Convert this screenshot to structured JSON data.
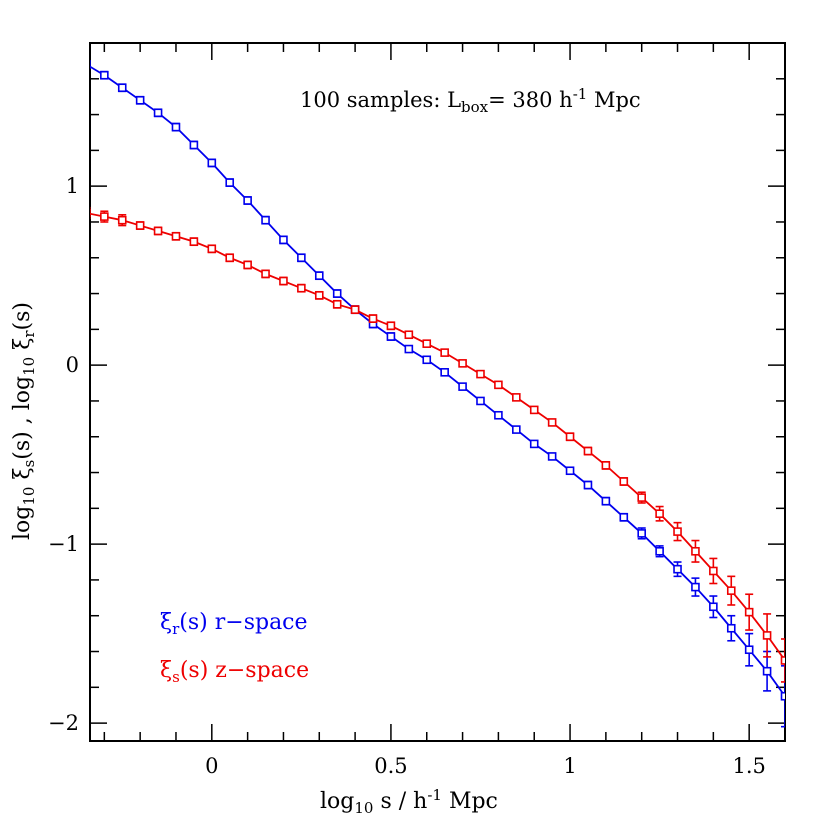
{
  "chart_data": {
    "type": "line",
    "title": "",
    "annotation": {
      "prefix": "100 samples: L",
      "sub": "box",
      "suffix": "=   380 h",
      "sup": "-1",
      "tail": " Mpc"
    },
    "xlabel": {
      "a": "log",
      "a_sub": "10",
      "b": " s / h",
      "b_sup": "-1",
      "c": " Mpc"
    },
    "ylabel": {
      "a": "log",
      "a_sub": "10",
      "b": " ξ",
      "b_sub": "s",
      "c": "(s)  ,  log",
      "c_sub": "10",
      "d": " ξ",
      "d_sub": "r",
      "e": "(s)"
    },
    "xlim": [
      -0.34,
      1.6
    ],
    "ylim": [
      -2.1,
      1.8
    ],
    "x_ticks": [
      {
        "value": 0,
        "label": "0"
      },
      {
        "value": 0.5,
        "label": "0.5"
      },
      {
        "value": 1,
        "label": "1"
      },
      {
        "value": 1.5,
        "label": "1.5"
      }
    ],
    "y_ticks": [
      {
        "value": -2,
        "label": "−2"
      },
      {
        "value": -1,
        "label": "−1"
      },
      {
        "value": 0,
        "label": "0"
      },
      {
        "value": 1,
        "label": "1"
      }
    ],
    "grid": false,
    "legend_position": "bottom-left",
    "x": [
      -0.35,
      -0.3,
      -0.25,
      -0.2,
      -0.15,
      -0.1,
      -0.05,
      0.0,
      0.05,
      0.1,
      0.15,
      0.2,
      0.25,
      0.3,
      0.35,
      0.4,
      0.45,
      0.5,
      0.55,
      0.6,
      0.65,
      0.7,
      0.75,
      0.8,
      0.85,
      0.9,
      0.95,
      1.0,
      1.05,
      1.1,
      1.15,
      1.2,
      1.25,
      1.3,
      1.35,
      1.4,
      1.45,
      1.5,
      1.55,
      1.6
    ],
    "series": [
      {
        "name": "r-space",
        "legend_sym": "ξ",
        "legend_sub": "r",
        "legend_rest": "(s) r−space",
        "color": "#0000ee",
        "values": [
          1.68,
          1.62,
          1.55,
          1.48,
          1.41,
          1.33,
          1.23,
          1.13,
          1.02,
          0.92,
          0.81,
          0.7,
          0.6,
          0.5,
          0.4,
          0.31,
          0.23,
          0.16,
          0.09,
          0.03,
          -0.04,
          -0.12,
          -0.2,
          -0.28,
          -0.36,
          -0.44,
          -0.51,
          -0.59,
          -0.67,
          -0.76,
          -0.85,
          -0.94,
          -1.04,
          -1.14,
          -1.24,
          -1.35,
          -1.47,
          -1.59,
          -1.71,
          -1.85
        ],
        "errors": [
          0.02,
          0.02,
          0.02,
          0.02,
          0.02,
          0.02,
          0.02,
          0.02,
          0.02,
          0.02,
          0.02,
          0.02,
          0.02,
          0.02,
          0.02,
          0.02,
          0.02,
          0.02,
          0.01,
          0.01,
          0.01,
          0.01,
          0.01,
          0.01,
          0.01,
          0.01,
          0.01,
          0.01,
          0.02,
          0.02,
          0.02,
          0.03,
          0.03,
          0.04,
          0.05,
          0.06,
          0.07,
          0.09,
          0.11,
          0.17
        ]
      },
      {
        "name": "z-space",
        "legend_sym": "ξ",
        "legend_sub": "s",
        "legend_rest": "(s) z−space",
        "color": "#ee0000",
        "values": [
          0.85,
          0.83,
          0.81,
          0.78,
          0.75,
          0.72,
          0.69,
          0.65,
          0.6,
          0.56,
          0.51,
          0.47,
          0.43,
          0.39,
          0.34,
          0.31,
          0.26,
          0.22,
          0.17,
          0.12,
          0.07,
          0.01,
          -0.05,
          -0.11,
          -0.18,
          -0.25,
          -0.32,
          -0.4,
          -0.48,
          -0.56,
          -0.65,
          -0.74,
          -0.83,
          -0.93,
          -1.04,
          -1.15,
          -1.26,
          -1.38,
          -1.51,
          -1.65
        ],
        "errors": [
          0.03,
          0.03,
          0.03,
          0.02,
          0.02,
          0.02,
          0.02,
          0.02,
          0.02,
          0.02,
          0.02,
          0.02,
          0.02,
          0.02,
          0.02,
          0.02,
          0.02,
          0.02,
          0.01,
          0.01,
          0.01,
          0.01,
          0.01,
          0.01,
          0.01,
          0.01,
          0.01,
          0.02,
          0.02,
          0.02,
          0.02,
          0.03,
          0.04,
          0.05,
          0.06,
          0.07,
          0.08,
          0.1,
          0.12,
          0.12
        ]
      }
    ]
  }
}
